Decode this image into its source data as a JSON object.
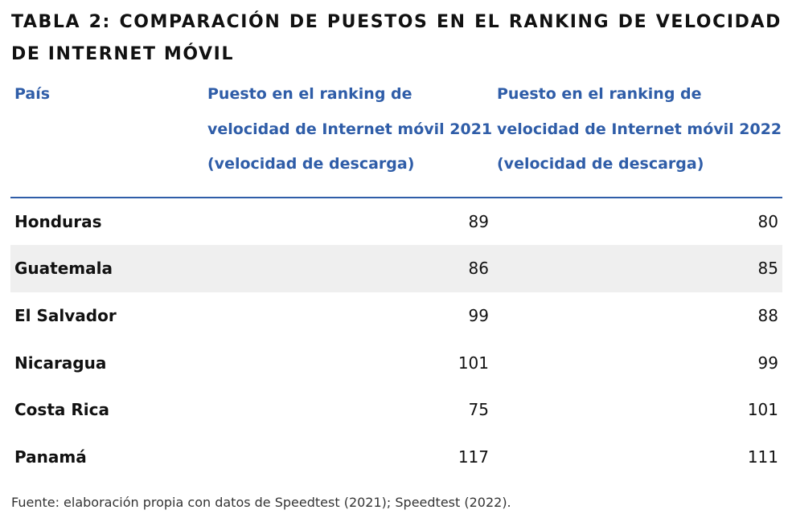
{
  "title": "TABLA 2: COMPARACIÓN DE PUESTOS EN EL RANKING DE VELOCIDAD DE INTERNET MÓVIL",
  "headers": {
    "country": "País",
    "rank_2021": "Puesto en el ranking de velocidad de Internet móvil 2021 (velocidad de descarga)",
    "rank_2022": "Puesto en el ranking de velocidad de Internet móvil 2022 (velocidad de descarga)"
  },
  "rows": [
    {
      "country": "Honduras",
      "rank_2021": "89",
      "rank_2022": "80"
    },
    {
      "country": "Guatemala",
      "rank_2021": "86",
      "rank_2022": "85"
    },
    {
      "country": "El Salvador",
      "rank_2021": "99",
      "rank_2022": "88"
    },
    {
      "country": "Nicaragua",
      "rank_2021": "101",
      "rank_2022": "99"
    },
    {
      "country": "Costa Rica",
      "rank_2021": "75",
      "rank_2022": "101"
    },
    {
      "country": "Panamá",
      "rank_2021": "117",
      "rank_2022": "111"
    }
  ],
  "source": "Fuente: elaboración propia con datos de Speedtest (2021); Speedtest (2022).",
  "colors": {
    "header_text": "#2f5da8",
    "header_rule": "#2f5da8",
    "shaded_row": "#efefef"
  }
}
